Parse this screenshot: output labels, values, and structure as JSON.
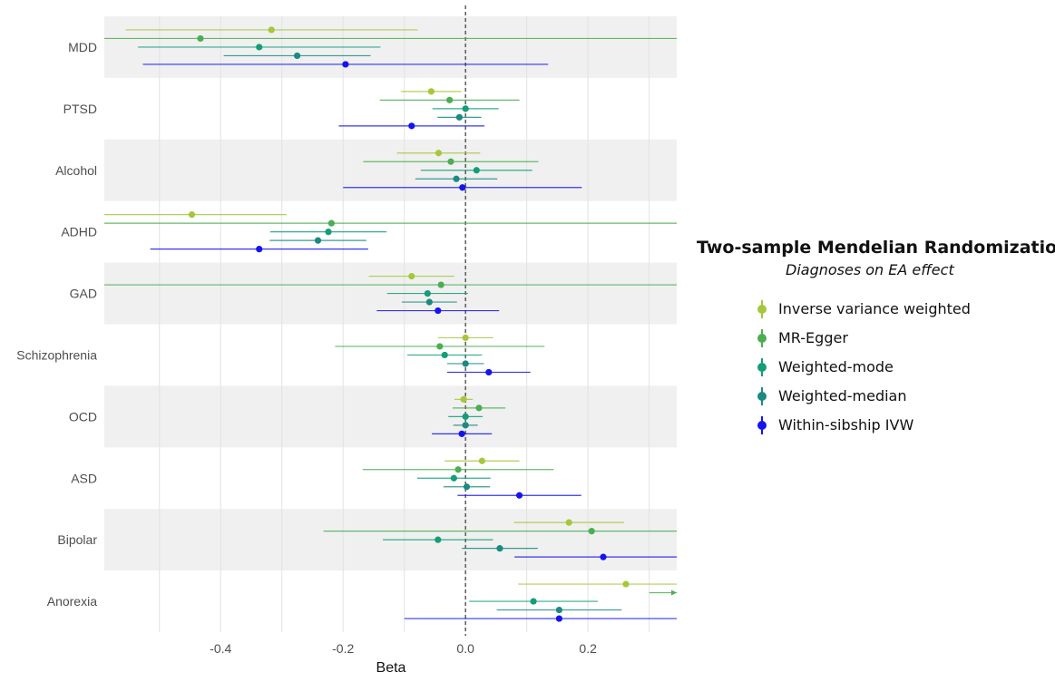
{
  "chart_data": {
    "type": "forest",
    "xlabel": "Beta",
    "xlim": [
      -0.59,
      0.345
    ],
    "xticks": [
      -0.4,
      -0.2,
      0.0,
      0.2
    ],
    "xtick_labels": [
      "-0.4",
      "-0.2",
      "0.0",
      "0.2"
    ],
    "reference_line": 0,
    "grid": true,
    "legend_placement": "right",
    "legend": {
      "title": "Two-sample Mendelian Randomization",
      "subtitle": "Diagnoses on EA effect"
    },
    "series": [
      {
        "name": "Inverse variance weighted",
        "color": "#a6c73a"
      },
      {
        "name": "MR-Egger",
        "color": "#4cae52"
      },
      {
        "name": "Weighted-mode",
        "color": "#119e78"
      },
      {
        "name": "Weighted-median",
        "color": "#1a8a82"
      },
      {
        "name": "Within-sibship IVW",
        "color": "#1414f0"
      }
    ],
    "categories": [
      "MDD",
      "PTSD",
      "Alcohol",
      "ADHD",
      "GAD",
      "Schizophrenia",
      "OCD",
      "ASD",
      "Bipolar",
      "Anorexia"
    ],
    "estimates": [
      {
        "category": "MDD",
        "points": [
          {
            "series": "Inverse variance weighted",
            "beta": -0.317,
            "lo": -0.555,
            "hi": -0.078
          },
          {
            "series": "MR-Egger",
            "beta": -0.433,
            "lo": -0.9,
            "hi": 0.9
          },
          {
            "series": "Weighted-mode",
            "beta": -0.337,
            "lo": -0.535,
            "hi": -0.139
          },
          {
            "series": "Weighted-median",
            "beta": -0.275,
            "lo": -0.395,
            "hi": -0.155
          },
          {
            "series": "Within-sibship IVW",
            "beta": -0.196,
            "lo": -0.527,
            "hi": 0.135
          }
        ]
      },
      {
        "category": "PTSD",
        "points": [
          {
            "series": "Inverse variance weighted",
            "beta": -0.056,
            "lo": -0.105,
            "hi": -0.007
          },
          {
            "series": "MR-Egger",
            "beta": -0.026,
            "lo": -0.14,
            "hi": 0.088
          },
          {
            "series": "Weighted-mode",
            "beta": 0.0,
            "lo": -0.054,
            "hi": 0.054
          },
          {
            "series": "Weighted-median",
            "beta": -0.01,
            "lo": -0.046,
            "hi": 0.026
          },
          {
            "series": "Within-sibship IVW",
            "beta": -0.088,
            "lo": -0.207,
            "hi": 0.031
          }
        ]
      },
      {
        "category": "Alcohol",
        "points": [
          {
            "series": "Inverse variance weighted",
            "beta": -0.044,
            "lo": -0.112,
            "hi": 0.024
          },
          {
            "series": "MR-Egger",
            "beta": -0.024,
            "lo": -0.167,
            "hi": 0.119
          },
          {
            "series": "Weighted-mode",
            "beta": 0.018,
            "lo": -0.073,
            "hi": 0.109
          },
          {
            "series": "Weighted-median",
            "beta": -0.015,
            "lo": -0.082,
            "hi": 0.052
          },
          {
            "series": "Within-sibship IVW",
            "beta": -0.005,
            "lo": -0.2,
            "hi": 0.19
          }
        ]
      },
      {
        "category": "ADHD",
        "points": [
          {
            "series": "Inverse variance weighted",
            "beta": -0.447,
            "lo": -0.9,
            "hi": -0.292
          },
          {
            "series": "MR-Egger",
            "beta": -0.219,
            "lo": -0.9,
            "hi": 0.9
          },
          {
            "series": "Weighted-mode",
            "beta": -0.224,
            "lo": -0.319,
            "hi": -0.129
          },
          {
            "series": "Weighted-median",
            "beta": -0.241,
            "lo": -0.32,
            "hi": -0.162
          },
          {
            "series": "Within-sibship IVW",
            "beta": -0.337,
            "lo": -0.515,
            "hi": -0.159
          }
        ]
      },
      {
        "category": "GAD",
        "points": [
          {
            "series": "Inverse variance weighted",
            "beta": -0.088,
            "lo": -0.158,
            "hi": -0.018
          },
          {
            "series": "MR-Egger",
            "beta": -0.04,
            "lo": -0.9,
            "hi": 0.9
          },
          {
            "series": "Weighted-mode",
            "beta": -0.062,
            "lo": -0.128,
            "hi": 0.004
          },
          {
            "series": "Weighted-median",
            "beta": -0.059,
            "lo": -0.104,
            "hi": -0.014
          },
          {
            "series": "Within-sibship IVW",
            "beta": -0.045,
            "lo": -0.145,
            "hi": 0.055
          }
        ]
      },
      {
        "category": "Schizophrenia",
        "points": [
          {
            "series": "Inverse variance weighted",
            "beta": 0.0,
            "lo": -0.045,
            "hi": 0.045
          },
          {
            "series": "MR-Egger",
            "beta": -0.042,
            "lo": -0.213,
            "hi": 0.129
          },
          {
            "series": "Weighted-mode",
            "beta": -0.034,
            "lo": -0.095,
            "hi": 0.027
          },
          {
            "series": "Weighted-median",
            "beta": 0.0,
            "lo": -0.03,
            "hi": 0.03
          },
          {
            "series": "Within-sibship IVW",
            "beta": 0.038,
            "lo": -0.03,
            "hi": 0.106
          }
        ]
      },
      {
        "category": "OCD",
        "points": [
          {
            "series": "Inverse variance weighted",
            "beta": -0.003,
            "lo": -0.018,
            "hi": 0.012
          },
          {
            "series": "MR-Egger",
            "beta": 0.022,
            "lo": -0.021,
            "hi": 0.065
          },
          {
            "series": "Weighted-mode",
            "beta": 0.0,
            "lo": -0.028,
            "hi": 0.028
          },
          {
            "series": "Weighted-median",
            "beta": 0.0,
            "lo": -0.02,
            "hi": 0.02
          },
          {
            "series": "Within-sibship IVW",
            "beta": -0.006,
            "lo": -0.055,
            "hi": 0.043
          }
        ]
      },
      {
        "category": "ASD",
        "points": [
          {
            "series": "Inverse variance weighted",
            "beta": 0.027,
            "lo": -0.034,
            "hi": 0.088
          },
          {
            "series": "MR-Egger",
            "beta": -0.012,
            "lo": -0.168,
            "hi": 0.144
          },
          {
            "series": "Weighted-mode",
            "beta": -0.019,
            "lo": -0.079,
            "hi": 0.041
          },
          {
            "series": "Weighted-median",
            "beta": 0.002,
            "lo": -0.036,
            "hi": 0.04
          },
          {
            "series": "Within-sibship IVW",
            "beta": 0.088,
            "lo": -0.013,
            "hi": 0.189
          }
        ]
      },
      {
        "category": "Bipolar",
        "points": [
          {
            "series": "Inverse variance weighted",
            "beta": 0.169,
            "lo": 0.079,
            "hi": 0.259
          },
          {
            "series": "MR-Egger",
            "beta": 0.206,
            "lo": -0.232,
            "hi": 0.9
          },
          {
            "series": "Weighted-mode",
            "beta": -0.045,
            "lo": -0.135,
            "hi": 0.045
          },
          {
            "series": "Weighted-median",
            "beta": 0.056,
            "lo": -0.006,
            "hi": 0.118
          },
          {
            "series": "Within-sibship IVW",
            "beta": 0.225,
            "lo": 0.08,
            "hi": 0.9
          }
        ]
      },
      {
        "category": "Anorexia",
        "points": [
          {
            "series": "Inverse variance weighted",
            "beta": 0.262,
            "lo": 0.086,
            "hi": 0.9
          },
          {
            "series": "MR-Egger",
            "beta": 0.9,
            "lo": 0.3,
            "hi": 0.9
          },
          {
            "series": "Weighted-mode",
            "beta": 0.111,
            "lo": 0.006,
            "hi": 0.216
          },
          {
            "series": "Weighted-median",
            "beta": 0.153,
            "lo": 0.051,
            "hi": 0.255
          },
          {
            "series": "Within-sibship IVW",
            "beta": 0.153,
            "lo": -0.1,
            "hi": 0.9
          }
        ]
      }
    ]
  }
}
